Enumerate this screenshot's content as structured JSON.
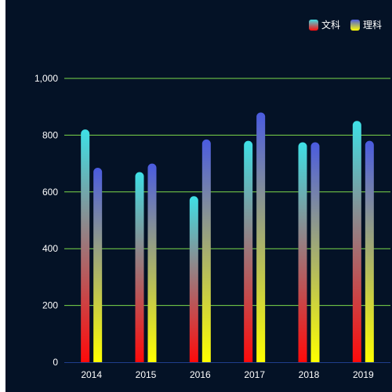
{
  "chart_data": {
    "type": "bar",
    "categories": [
      "2014",
      "2015",
      "2016",
      "2017",
      "2018",
      "2019"
    ],
    "series": [
      {
        "name": "文科",
        "values": [
          820,
          670,
          585,
          780,
          775,
          850
        ],
        "gradient": {
          "top": "#3ee0e6",
          "bottom": "#ff0a0a"
        }
      },
      {
        "name": "理科",
        "values": [
          685,
          700,
          785,
          880,
          775,
          780
        ],
        "gradient": {
          "top": "#4a5be0",
          "bottom": "#ffff00"
        }
      }
    ],
    "ylim": [
      0,
      1000
    ],
    "yticks": [
      {
        "value": 0,
        "label": "0"
      },
      {
        "value": 200,
        "label": "200"
      },
      {
        "value": 400,
        "label": "400"
      },
      {
        "value": 600,
        "label": "600"
      },
      {
        "value": 800,
        "label": "800"
      },
      {
        "value": 1000,
        "label": "1,000"
      }
    ],
    "grid": true,
    "gridColor": "#7cd94a",
    "axisColor": "#1f3e8c",
    "background": "#041226",
    "legend_position": "top-right",
    "title": "",
    "xlabel": "",
    "ylabel": ""
  }
}
